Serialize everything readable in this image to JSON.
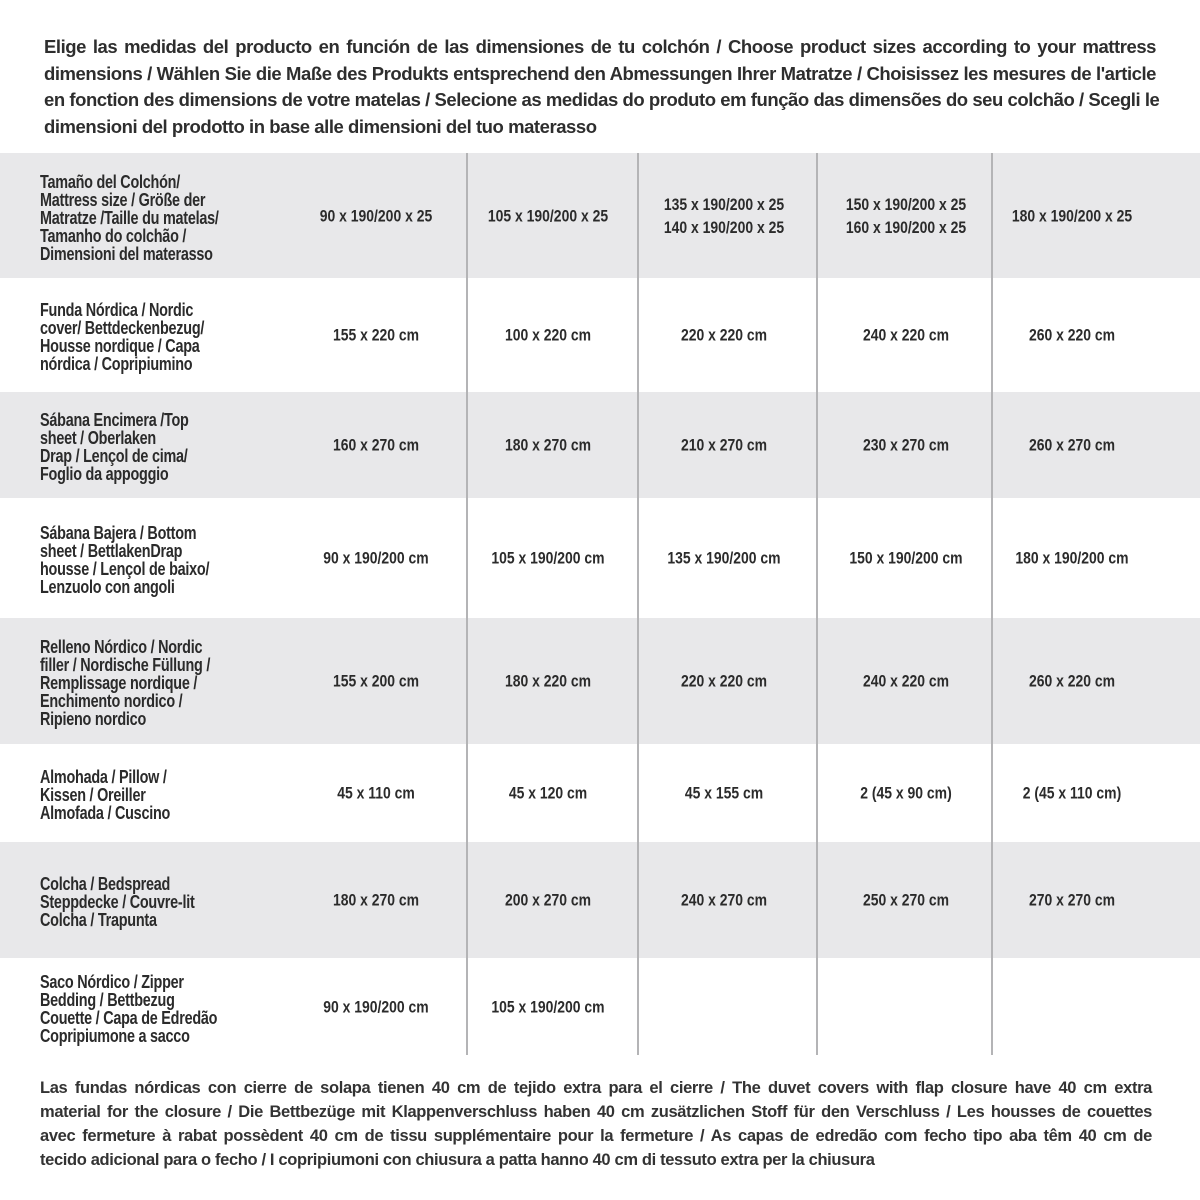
{
  "intro": [
    "Elige las medidas del producto en función de las dimensiones de tu colchón / Choose product sizes according to your mattress",
    "dimensions / Wählen Sie die Maße des Produkts entsprechend den Abmessungen Ihrer Matratze / Choisissez les mesures de l'article",
    "en fonction des dimensions de votre matelas / Selecione as medidas do produto em função das dimensões do seu colchão / Scegli le",
    "dimensioni del prodotto in base alle dimensioni del tuo materasso"
  ],
  "table": {
    "rows": [
      {
        "label": [
          "Tamaño del Colchón/",
          "Mattress size / Größe der",
          "Matratze /Taille du matelas/",
          "Tamanho do colchão /",
          "Dimensioni del materasso"
        ],
        "values": [
          [
            "90 x 190/200 x 25"
          ],
          [
            "105 x 190/200 x 25"
          ],
          [
            "135 x 190/200 x 25",
            "140 x 190/200 x 25"
          ],
          [
            "150 x 190/200 x 25",
            "160 x 190/200 x 25"
          ],
          [
            "180 x 190/200 x 25"
          ]
        ]
      },
      {
        "label": [
          "Funda Nórdica /  Nordic",
          "cover/ Bettdeckenbezug/",
          "Housse nordique  / Capa",
          "nórdica / Copripiumino"
        ],
        "values": [
          [
            "155 x 220 cm"
          ],
          [
            "100 x 220 cm"
          ],
          [
            "220 x 220 cm"
          ],
          [
            "240 x 220 cm"
          ],
          [
            "260 x 220 cm"
          ]
        ]
      },
      {
        "label": [
          "Sábana Encimera /Top",
          "sheet / Oberlaken",
          "Drap / Lençol de cima/",
          "Foglio da appoggio"
        ],
        "values": [
          [
            "160 x 270 cm"
          ],
          [
            "180 x 270 cm"
          ],
          [
            "210 x 270 cm"
          ],
          [
            "230 x 270 cm"
          ],
          [
            "260 x 270 cm"
          ]
        ]
      },
      {
        "label": [
          "Sábana Bajera / Bottom",
          "sheet / BettlakenDrap",
          "housse / Lençol de baixo/",
          "Lenzuolo con angoli"
        ],
        "values": [
          [
            "90 x 190/200 cm"
          ],
          [
            "105 x 190/200 cm"
          ],
          [
            "135 x 190/200 cm"
          ],
          [
            "150 x 190/200 cm"
          ],
          [
            "180 x 190/200 cm"
          ]
        ]
      },
      {
        "label": [
          "Relleno Nórdico / Nordic",
          "filler / Nordische Füllung /",
          "Remplissage nordique /",
          "Enchimento nordico /",
          "Ripieno nordico"
        ],
        "values": [
          [
            "155 x 200 cm"
          ],
          [
            "180 x 220 cm"
          ],
          [
            "220 x 220 cm"
          ],
          [
            "240 x 220 cm"
          ],
          [
            "260 x 220 cm"
          ]
        ]
      },
      {
        "label": [
          "Almohada  / Pillow /",
          "Kissen / Oreiller",
          "Almofada / Cuscino"
        ],
        "values": [
          [
            "45 x 110 cm"
          ],
          [
            "45 x 120 cm"
          ],
          [
            "45 x 155 cm"
          ],
          [
            "2 (45 x 90 cm)"
          ],
          [
            "2 (45 x 110 cm)"
          ]
        ]
      },
      {
        "label": [
          "Colcha / Bedspread",
          "Steppdecke / Couvre-lit",
          "Colcha / Trapunta"
        ],
        "values": [
          [
            "180 x 270 cm"
          ],
          [
            "200 x 270 cm"
          ],
          [
            "240 x 270 cm"
          ],
          [
            "250 x 270 cm"
          ],
          [
            "270 x 270 cm"
          ]
        ]
      },
      {
        "label": [
          "Saco Nórdico / Zipper",
          "Bedding / Bettbezug",
          "Couette  / Capa de Edredão",
          "Copripiumone a sacco"
        ],
        "values": [
          [
            "90 x 190/200 cm"
          ],
          [
            "105 x 190/200 cm"
          ],
          [],
          [],
          []
        ]
      }
    ]
  },
  "footnote": [
    "Las fundas nórdicas con cierre de solapa tienen 40 cm de tejido extra para el cierre   / The duvet covers with flap closure have 40 cm extra",
    "material for the closure / Die Bettbezüge mit Klappenverschluss haben 40 cm zusätzlichen Stoff für den Verschluss / Les housses de couettes",
    "avec fermeture à rabat possèdent 40 cm de tissu supplémentaire pour la fermeture / As capas de edredão com fecho tipo aba têm 40 cm de",
    "tecido adicional para o fecho / I copripiumoni con chiusura a patta hanno 40 cm di tessuto extra per la chiusura"
  ],
  "colors": {
    "band": "#e8e8ea",
    "divider": "#b4b4b6",
    "text": "#2b2b2b"
  }
}
